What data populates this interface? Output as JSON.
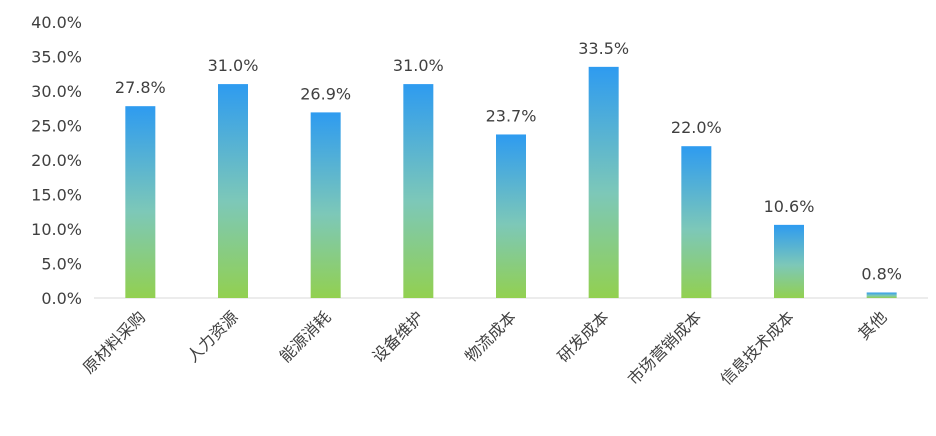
{
  "chart_data": {
    "type": "bar",
    "categories": [
      "原材料采购",
      "人力资源",
      "能源消耗",
      "设备维护",
      "物流成本",
      "研发成本",
      "市场营销成本",
      "信息技术成本",
      "其他"
    ],
    "values": [
      27.8,
      31.0,
      26.9,
      31.0,
      23.7,
      33.5,
      22.0,
      10.6,
      0.8
    ],
    "data_labels": [
      "27.8%",
      "31.0%",
      "26.9%",
      "31.0%",
      "23.7%",
      "33.5%",
      "22.0%",
      "10.6%",
      "0.8%"
    ],
    "y_ticks": [
      0,
      5,
      10,
      15,
      20,
      25,
      30,
      35,
      40
    ],
    "y_tick_labels": [
      "0.0%",
      "5.0%",
      "10.0%",
      "15.0%",
      "20.0%",
      "25.0%",
      "30.0%",
      "35.0%",
      "40.0%"
    ],
    "ylim": [
      0,
      40
    ],
    "grid": false,
    "legend": "none",
    "colors": {
      "bar_top": "#2e9bf0",
      "bar_mid": "#7dc8b8",
      "bar_bottom": "#92d050",
      "text": "#404040",
      "axis": "#d9d9d9"
    }
  }
}
